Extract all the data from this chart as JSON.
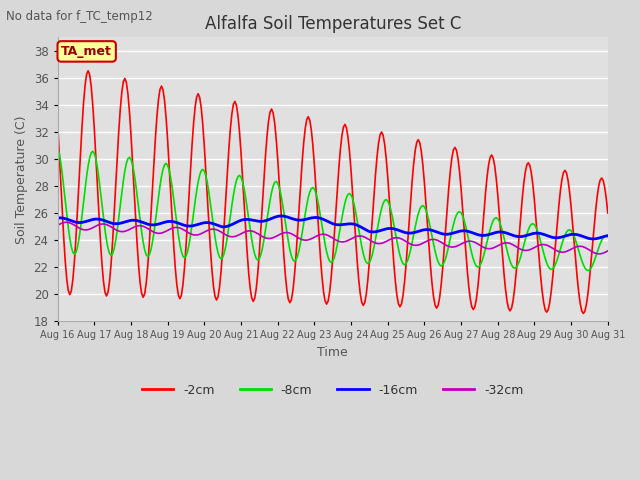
{
  "title": "Alfalfa Soil Temperatures Set C",
  "xlabel": "Time",
  "ylabel": "Soil Temperature (C)",
  "ylim": [
    18,
    39
  ],
  "background_color": "#d8d8d8",
  "plot_bg_color": "#e0e0e0",
  "grid_color": "#ffffff",
  "legend_labels": [
    "-2cm",
    "-8cm",
    "-16cm",
    "-32cm"
  ],
  "legend_colors": [
    "#ff0000",
    "#00dd00",
    "#0000ff",
    "#bb00bb"
  ],
  "ta_met_label": "TA_met",
  "ta_met_bg": "#ffff99",
  "ta_met_border": "#cc0000",
  "ta_met_text_color": "#990000",
  "note_text": "No data for f_TC_temp12",
  "note_color": "#555555",
  "figwidth": 6.4,
  "figheight": 4.8,
  "dpi": 100
}
